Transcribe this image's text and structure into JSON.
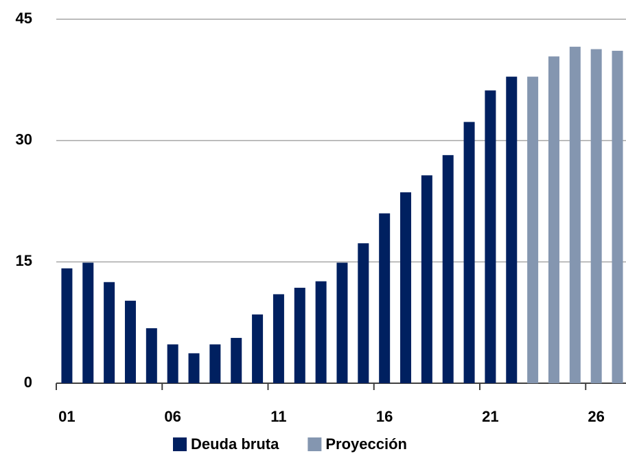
{
  "chart_data": {
    "type": "bar",
    "categories": [
      "01",
      null,
      null,
      null,
      null,
      "06",
      null,
      null,
      null,
      null,
      "11",
      null,
      null,
      null,
      null,
      "16",
      null,
      null,
      null,
      null,
      "21",
      null,
      null,
      null,
      null,
      "26",
      null
    ],
    "series": [
      {
        "name": "Deuda bruta",
        "color": "#002060",
        "values": [
          14.2,
          14.9,
          12.5,
          10.2,
          6.8,
          4.8,
          3.7,
          4.8,
          5.6,
          8.5,
          11.0,
          11.8,
          12.6,
          14.9,
          17.3,
          21.0,
          23.6,
          25.7,
          28.2,
          32.3,
          36.2,
          37.9,
          null,
          null,
          null,
          null,
          null
        ]
      },
      {
        "name": "Proyección",
        "color": "#8496b0",
        "values": [
          null,
          null,
          null,
          null,
          null,
          null,
          null,
          null,
          null,
          null,
          null,
          null,
          null,
          null,
          null,
          null,
          null,
          null,
          null,
          null,
          null,
          null,
          37.9,
          40.4,
          41.6,
          41.3,
          41.1
        ]
      }
    ],
    "ylim": [
      0,
      45
    ],
    "yticks": [
      0,
      15,
      30,
      45
    ],
    "grid": true
  }
}
